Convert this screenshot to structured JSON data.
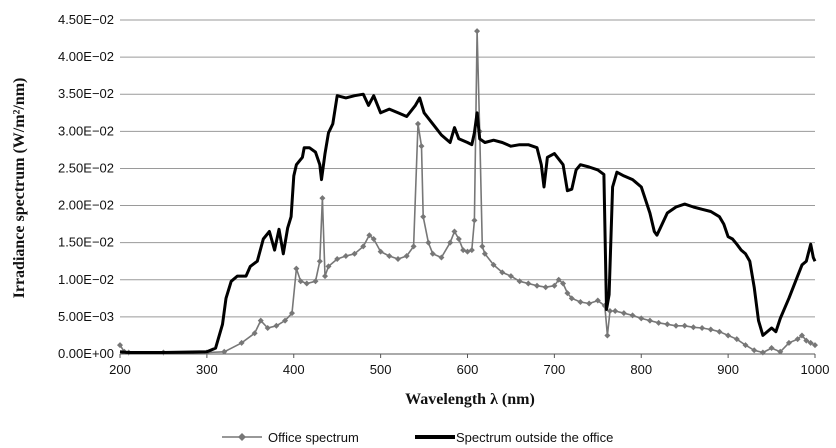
{
  "chart_data": {
    "type": "line",
    "xlabel": "Wavelength λ (nm)",
    "ylabel": "Irradiance spectrum (W/m²/nm)",
    "xlim": [
      200,
      1000
    ],
    "ylim": [
      0,
      0.045
    ],
    "x_ticks": [
      "200",
      "300",
      "400",
      "500",
      "600",
      "700",
      "800",
      "900",
      "1000"
    ],
    "y_ticks": [
      "0.00E+00",
      "5.00E−03",
      "1.00E−02",
      "1.50E−02",
      "2.00E−02",
      "2.50E−02",
      "3.00E−02",
      "3.50E−02",
      "4.00E−02",
      "4.50E−02"
    ],
    "grid": "horizontal",
    "legend_position": "bottom",
    "series": [
      {
        "name": "Office spectrum",
        "color": "#777777",
        "marker": "diamond",
        "points": [
          [
            200,
            0.0012
          ],
          [
            205,
            0.0003
          ],
          [
            210,
            0.0002
          ],
          [
            250,
            0.0002
          ],
          [
            300,
            0.0002
          ],
          [
            320,
            0.0003
          ],
          [
            340,
            0.0015
          ],
          [
            355,
            0.0028
          ],
          [
            362,
            0.0045
          ],
          [
            370,
            0.0035
          ],
          [
            380,
            0.0038
          ],
          [
            390,
            0.0045
          ],
          [
            398,
            0.0055
          ],
          [
            403,
            0.0115
          ],
          [
            408,
            0.0098
          ],
          [
            415,
            0.0095
          ],
          [
            425,
            0.0098
          ],
          [
            430,
            0.0125
          ],
          [
            433,
            0.021
          ],
          [
            436,
            0.0105
          ],
          [
            440,
            0.0118
          ],
          [
            450,
            0.0128
          ],
          [
            460,
            0.0132
          ],
          [
            470,
            0.0135
          ],
          [
            480,
            0.0145
          ],
          [
            487,
            0.016
          ],
          [
            492,
            0.0155
          ],
          [
            500,
            0.0138
          ],
          [
            510,
            0.0132
          ],
          [
            520,
            0.0128
          ],
          [
            530,
            0.0132
          ],
          [
            538,
            0.0145
          ],
          [
            543,
            0.031
          ],
          [
            547,
            0.028
          ],
          [
            549,
            0.0185
          ],
          [
            555,
            0.015
          ],
          [
            560,
            0.0135
          ],
          [
            570,
            0.013
          ],
          [
            580,
            0.015
          ],
          [
            585,
            0.0165
          ],
          [
            590,
            0.0155
          ],
          [
            595,
            0.014
          ],
          [
            600,
            0.0138
          ],
          [
            605,
            0.014
          ],
          [
            608,
            0.018
          ],
          [
            611,
            0.0435
          ],
          [
            614,
            0.03
          ],
          [
            617,
            0.0145
          ],
          [
            620,
            0.0135
          ],
          [
            630,
            0.012
          ],
          [
            640,
            0.011
          ],
          [
            650,
            0.0105
          ],
          [
            660,
            0.0098
          ],
          [
            670,
            0.0095
          ],
          [
            680,
            0.0092
          ],
          [
            690,
            0.009
          ],
          [
            700,
            0.0092
          ],
          [
            705,
            0.01
          ],
          [
            710,
            0.0095
          ],
          [
            715,
            0.0082
          ],
          [
            720,
            0.0075
          ],
          [
            730,
            0.007
          ],
          [
            740,
            0.0068
          ],
          [
            750,
            0.0072
          ],
          [
            758,
            0.0065
          ],
          [
            761,
            0.0025
          ],
          [
            764,
            0.0058
          ],
          [
            770,
            0.0058
          ],
          [
            780,
            0.0055
          ],
          [
            790,
            0.0052
          ],
          [
            800,
            0.0048
          ],
          [
            810,
            0.0045
          ],
          [
            820,
            0.0042
          ],
          [
            830,
            0.004
          ],
          [
            840,
            0.0038
          ],
          [
            850,
            0.0038
          ],
          [
            860,
            0.0036
          ],
          [
            870,
            0.0035
          ],
          [
            880,
            0.0033
          ],
          [
            890,
            0.003
          ],
          [
            900,
            0.0025
          ],
          [
            910,
            0.002
          ],
          [
            920,
            0.0012
          ],
          [
            930,
            0.0005
          ],
          [
            940,
            0.0002
          ],
          [
            950,
            0.0008
          ],
          [
            960,
            0.0003
          ],
          [
            970,
            0.0015
          ],
          [
            980,
            0.002
          ],
          [
            985,
            0.0025
          ],
          [
            990,
            0.0018
          ],
          [
            995,
            0.0015
          ],
          [
            1000,
            0.0012
          ]
        ]
      },
      {
        "name": "Spectrum outside the office",
        "color": "#000000",
        "marker": "none",
        "points": [
          [
            200,
            0.0003
          ],
          [
            210,
            0.0002
          ],
          [
            250,
            0.0002
          ],
          [
            300,
            0.0003
          ],
          [
            310,
            0.0008
          ],
          [
            318,
            0.004
          ],
          [
            322,
            0.0075
          ],
          [
            328,
            0.0098
          ],
          [
            335,
            0.0105
          ],
          [
            345,
            0.0105
          ],
          [
            350,
            0.0118
          ],
          [
            358,
            0.0125
          ],
          [
            365,
            0.0155
          ],
          [
            372,
            0.0165
          ],
          [
            378,
            0.014
          ],
          [
            383,
            0.0168
          ],
          [
            388,
            0.0135
          ],
          [
            393,
            0.017
          ],
          [
            397,
            0.0185
          ],
          [
            400,
            0.024
          ],
          [
            403,
            0.0255
          ],
          [
            410,
            0.0265
          ],
          [
            412,
            0.0278
          ],
          [
            418,
            0.0278
          ],
          [
            425,
            0.0272
          ],
          [
            430,
            0.0255
          ],
          [
            432,
            0.0235
          ],
          [
            436,
            0.027
          ],
          [
            440,
            0.0298
          ],
          [
            445,
            0.031
          ],
          [
            450,
            0.0348
          ],
          [
            460,
            0.0345
          ],
          [
            470,
            0.0348
          ],
          [
            480,
            0.035
          ],
          [
            486,
            0.0335
          ],
          [
            492,
            0.0348
          ],
          [
            500,
            0.0325
          ],
          [
            510,
            0.033
          ],
          [
            520,
            0.0325
          ],
          [
            530,
            0.032
          ],
          [
            540,
            0.0335
          ],
          [
            545,
            0.0345
          ],
          [
            550,
            0.0325
          ],
          [
            560,
            0.031
          ],
          [
            570,
            0.0295
          ],
          [
            580,
            0.0285
          ],
          [
            585,
            0.0305
          ],
          [
            590,
            0.029
          ],
          [
            600,
            0.0285
          ],
          [
            605,
            0.0282
          ],
          [
            608,
            0.0298
          ],
          [
            611,
            0.0325
          ],
          [
            614,
            0.029
          ],
          [
            620,
            0.0285
          ],
          [
            630,
            0.0288
          ],
          [
            640,
            0.0285
          ],
          [
            650,
            0.028
          ],
          [
            660,
            0.0282
          ],
          [
            670,
            0.0282
          ],
          [
            680,
            0.0278
          ],
          [
            685,
            0.0255
          ],
          [
            688,
            0.0225
          ],
          [
            692,
            0.0265
          ],
          [
            700,
            0.027
          ],
          [
            710,
            0.0255
          ],
          [
            715,
            0.022
          ],
          [
            720,
            0.0222
          ],
          [
            725,
            0.0248
          ],
          [
            730,
            0.0255
          ],
          [
            740,
            0.0252
          ],
          [
            750,
            0.0248
          ],
          [
            757,
            0.0242
          ],
          [
            760,
            0.006
          ],
          [
            763,
            0.008
          ],
          [
            767,
            0.0225
          ],
          [
            772,
            0.0245
          ],
          [
            780,
            0.024
          ],
          [
            790,
            0.0235
          ],
          [
            800,
            0.0225
          ],
          [
            810,
            0.019
          ],
          [
            815,
            0.0165
          ],
          [
            818,
            0.016
          ],
          [
            822,
            0.017
          ],
          [
            830,
            0.019
          ],
          [
            840,
            0.0198
          ],
          [
            850,
            0.0202
          ],
          [
            860,
            0.0198
          ],
          [
            870,
            0.0195
          ],
          [
            880,
            0.0192
          ],
          [
            890,
            0.0185
          ],
          [
            895,
            0.0175
          ],
          [
            900,
            0.0158
          ],
          [
            905,
            0.0155
          ],
          [
            910,
            0.0148
          ],
          [
            915,
            0.014
          ],
          [
            920,
            0.0135
          ],
          [
            925,
            0.0125
          ],
          [
            930,
            0.009
          ],
          [
            935,
            0.0045
          ],
          [
            940,
            0.0025
          ],
          [
            945,
            0.003
          ],
          [
            950,
            0.0035
          ],
          [
            955,
            0.003
          ],
          [
            960,
            0.0048
          ],
          [
            970,
            0.0075
          ],
          [
            980,
            0.0105
          ],
          [
            985,
            0.012
          ],
          [
            990,
            0.0125
          ],
          [
            995,
            0.0148
          ],
          [
            998,
            0.013
          ],
          [
            1000,
            0.0125
          ]
        ]
      }
    ]
  }
}
